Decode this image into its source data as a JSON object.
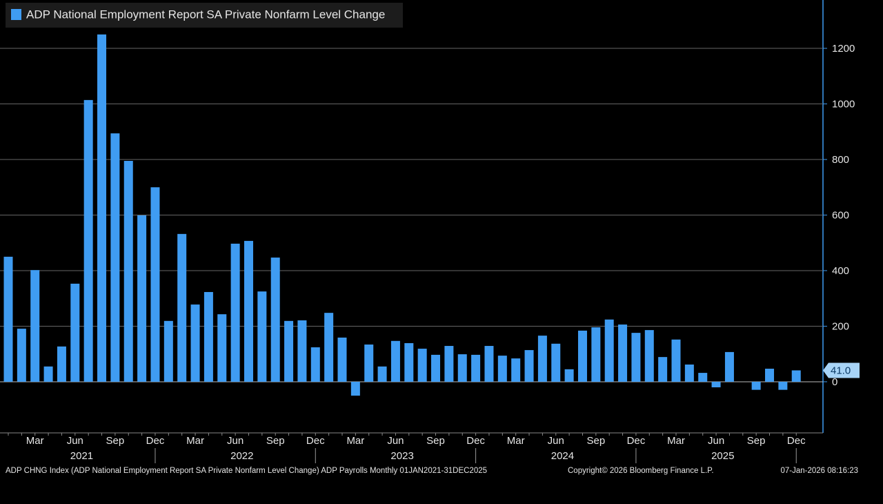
{
  "chart_data": {
    "type": "bar",
    "legend": "ADP National Employment Report SA Private Nonfarm Level Change",
    "color": "#3f9cf2",
    "categories": [
      null,
      null,
      "Mar",
      null,
      null,
      "Jun",
      null,
      null,
      "Sep",
      null,
      null,
      "Dec",
      null,
      null,
      "Mar",
      null,
      null,
      "Jun",
      null,
      null,
      "Sep",
      null,
      null,
      "Dec",
      null,
      null,
      "Mar",
      null,
      null,
      "Jun",
      null,
      null,
      "Sep",
      null,
      null,
      "Dec",
      null,
      null,
      "Mar",
      null,
      null,
      "Jun",
      null,
      null,
      "Sep",
      null,
      null,
      "Dec",
      null,
      null,
      "Mar",
      null,
      null,
      "Jun",
      null,
      null,
      "Sep",
      null,
      null,
      "Dec"
    ],
    "years": [
      "2021",
      "2022",
      "2023",
      "2024",
      "2025"
    ],
    "values": [
      450,
      191,
      402,
      55,
      127,
      353,
      1014,
      1250,
      894,
      795,
      599,
      700,
      219,
      532,
      278,
      323,
      243,
      497,
      507,
      325,
      447,
      219,
      221,
      124,
      248,
      159,
      -50,
      134,
      55,
      147,
      139,
      119,
      97,
      129,
      99,
      97,
      129,
      94,
      84,
      114,
      166,
      137,
      45,
      184,
      196,
      224,
      206,
      176,
      186,
      89,
      152,
      62,
      32,
      -20,
      107,
      0,
      -29,
      47,
      -29,
      41
    ],
    "value_labels": [
      null,
      null,
      null,
      null,
      null,
      null,
      null,
      null,
      null,
      null,
      null,
      null,
      null,
      null,
      null,
      null,
      null,
      null,
      null,
      null,
      null,
      null,
      null,
      null,
      null,
      null,
      null,
      null,
      null,
      null,
      null,
      null,
      null,
      null,
      null,
      null,
      null,
      null,
      null,
      null,
      null,
      null,
      null,
      null,
      null,
      null,
      null,
      null,
      null,
      null,
      null,
      null,
      null,
      null,
      null,
      null,
      null,
      null,
      null,
      "41.0"
    ],
    "ylim": [
      -184,
      1374
    ],
    "yticks": [
      0,
      200,
      400,
      600,
      800,
      1000,
      1200
    ],
    "grid": true,
    "source": "ADP CHNG Index (ADP National Employment Report SA Private Nonfarm Level Change) ADP Payrolls Monthly 01JAN2021-31DEC2025",
    "copyright": "Copyright© 2026 Bloomberg Finance L.P.",
    "timestamp": "07-Jan-2026 08:16:23"
  }
}
